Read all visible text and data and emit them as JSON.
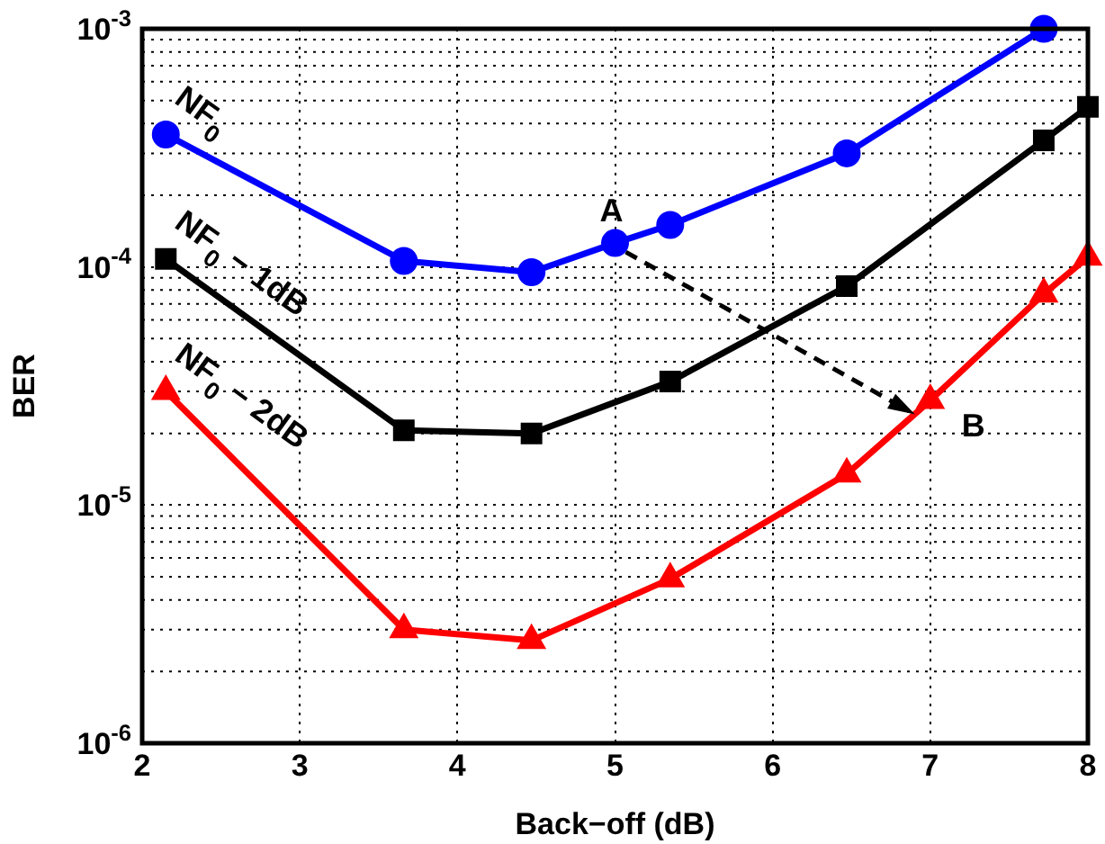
{
  "chart_data": {
    "type": "line",
    "xlabel": "Back−off (dB)",
    "ylabel": "BER",
    "log": "y",
    "grid": true,
    "legend": false,
    "xlim": [
      2,
      8
    ],
    "xticks": [
      2,
      3,
      4,
      5,
      6,
      7,
      8
    ],
    "ylim": [
      1e-06,
      0.001
    ],
    "yticks": [
      {
        "value": 1e-06,
        "label": "10$^{-6}$"
      },
      {
        "value": 1e-05,
        "label": "10$^{-5}$"
      },
      {
        "value": 0.0001,
        "label": "10$^{-4}$"
      },
      {
        "value": 0.001,
        "label": "10$^{-3}$"
      }
    ],
    "line_style": "solid",
    "series": [
      {
        "name": "NF$_{0}$",
        "color": "#0000ff",
        "marker": "circle",
        "x": [
          2.15,
          3.66,
          4.47,
          5.0,
          5.35,
          6.47,
          7.72
        ],
        "values": [
          0.00036,
          0.000106,
          9.5e-05,
          0.000126,
          0.00015,
          0.0003,
          0.001
        ]
      },
      {
        "name": "NF$_{0}$ − 1dB",
        "color": "#000000",
        "marker": "square",
        "x": [
          2.15,
          3.66,
          4.47,
          5.35,
          6.47,
          7.72,
          8.0
        ],
        "values": [
          0.000108,
          2.06e-05,
          2e-05,
          3.3e-05,
          8.3e-05,
          0.00034,
          0.00047
        ]
      },
      {
        "name": "NF$_{0}$ − 2dB",
        "color": "#ff0000",
        "marker": "triangle",
        "x": [
          2.15,
          3.66,
          4.47,
          5.35,
          6.47,
          7.0,
          7.72,
          8.0
        ],
        "values": [
          3e-05,
          3e-06,
          2.7e-06,
          4.9e-06,
          1.35e-05,
          2.75e-05,
          7.7e-05,
          0.00011
        ]
      }
    ],
    "annotations": [
      {
        "text": "A",
        "x": 5.0,
        "y": 0.000126
      },
      {
        "text": "B",
        "x": 7.0,
        "y": 2.4e-05
      }
    ]
  }
}
